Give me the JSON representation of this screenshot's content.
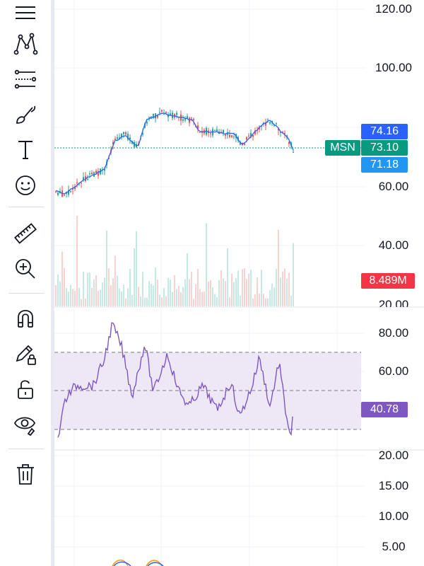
{
  "toolbar": {
    "tools": [
      {
        "name": "trend-lines-icon"
      },
      {
        "name": "patterns-icon"
      },
      {
        "name": "forecasting-icon"
      },
      {
        "name": "brush-icon"
      },
      {
        "name": "text-icon",
        "glyph": "T"
      },
      {
        "name": "emoji-icon"
      },
      {
        "name": "ruler-icon"
      },
      {
        "name": "zoom-in-icon"
      },
      {
        "name": "magnet-icon"
      },
      {
        "name": "lock-drawing-icon"
      },
      {
        "name": "unlock-icon"
      },
      {
        "name": "visibility-icon"
      },
      {
        "name": "trash-icon"
      }
    ]
  },
  "price_axis": {
    "labels": [
      "120.00",
      "100.00",
      "60.00",
      "40.00",
      "20.00"
    ]
  },
  "rsi_axis": {
    "labels": [
      "80.00",
      "60.00"
    ]
  },
  "lower_axis": {
    "labels": [
      "20.00",
      "15.00",
      "10.00",
      "5.00"
    ]
  },
  "badges": {
    "symbol": "MSN",
    "upper_band": "74.16",
    "last_price": "73.10",
    "lower_band": "71.18",
    "volume": "8.489M",
    "rsi": "40.78"
  },
  "colors": {
    "up": "#26a69a",
    "down": "#ef5350",
    "ma": "#2962ff",
    "rsi": "#7e57c2",
    "rsi_band": "#ede7f6",
    "badge_blue": "#2962ff",
    "badge_green": "#089981",
    "badge_lightblue": "#2196f3",
    "badge_red": "#f23645",
    "badge_purple": "#7e57c2"
  }
}
